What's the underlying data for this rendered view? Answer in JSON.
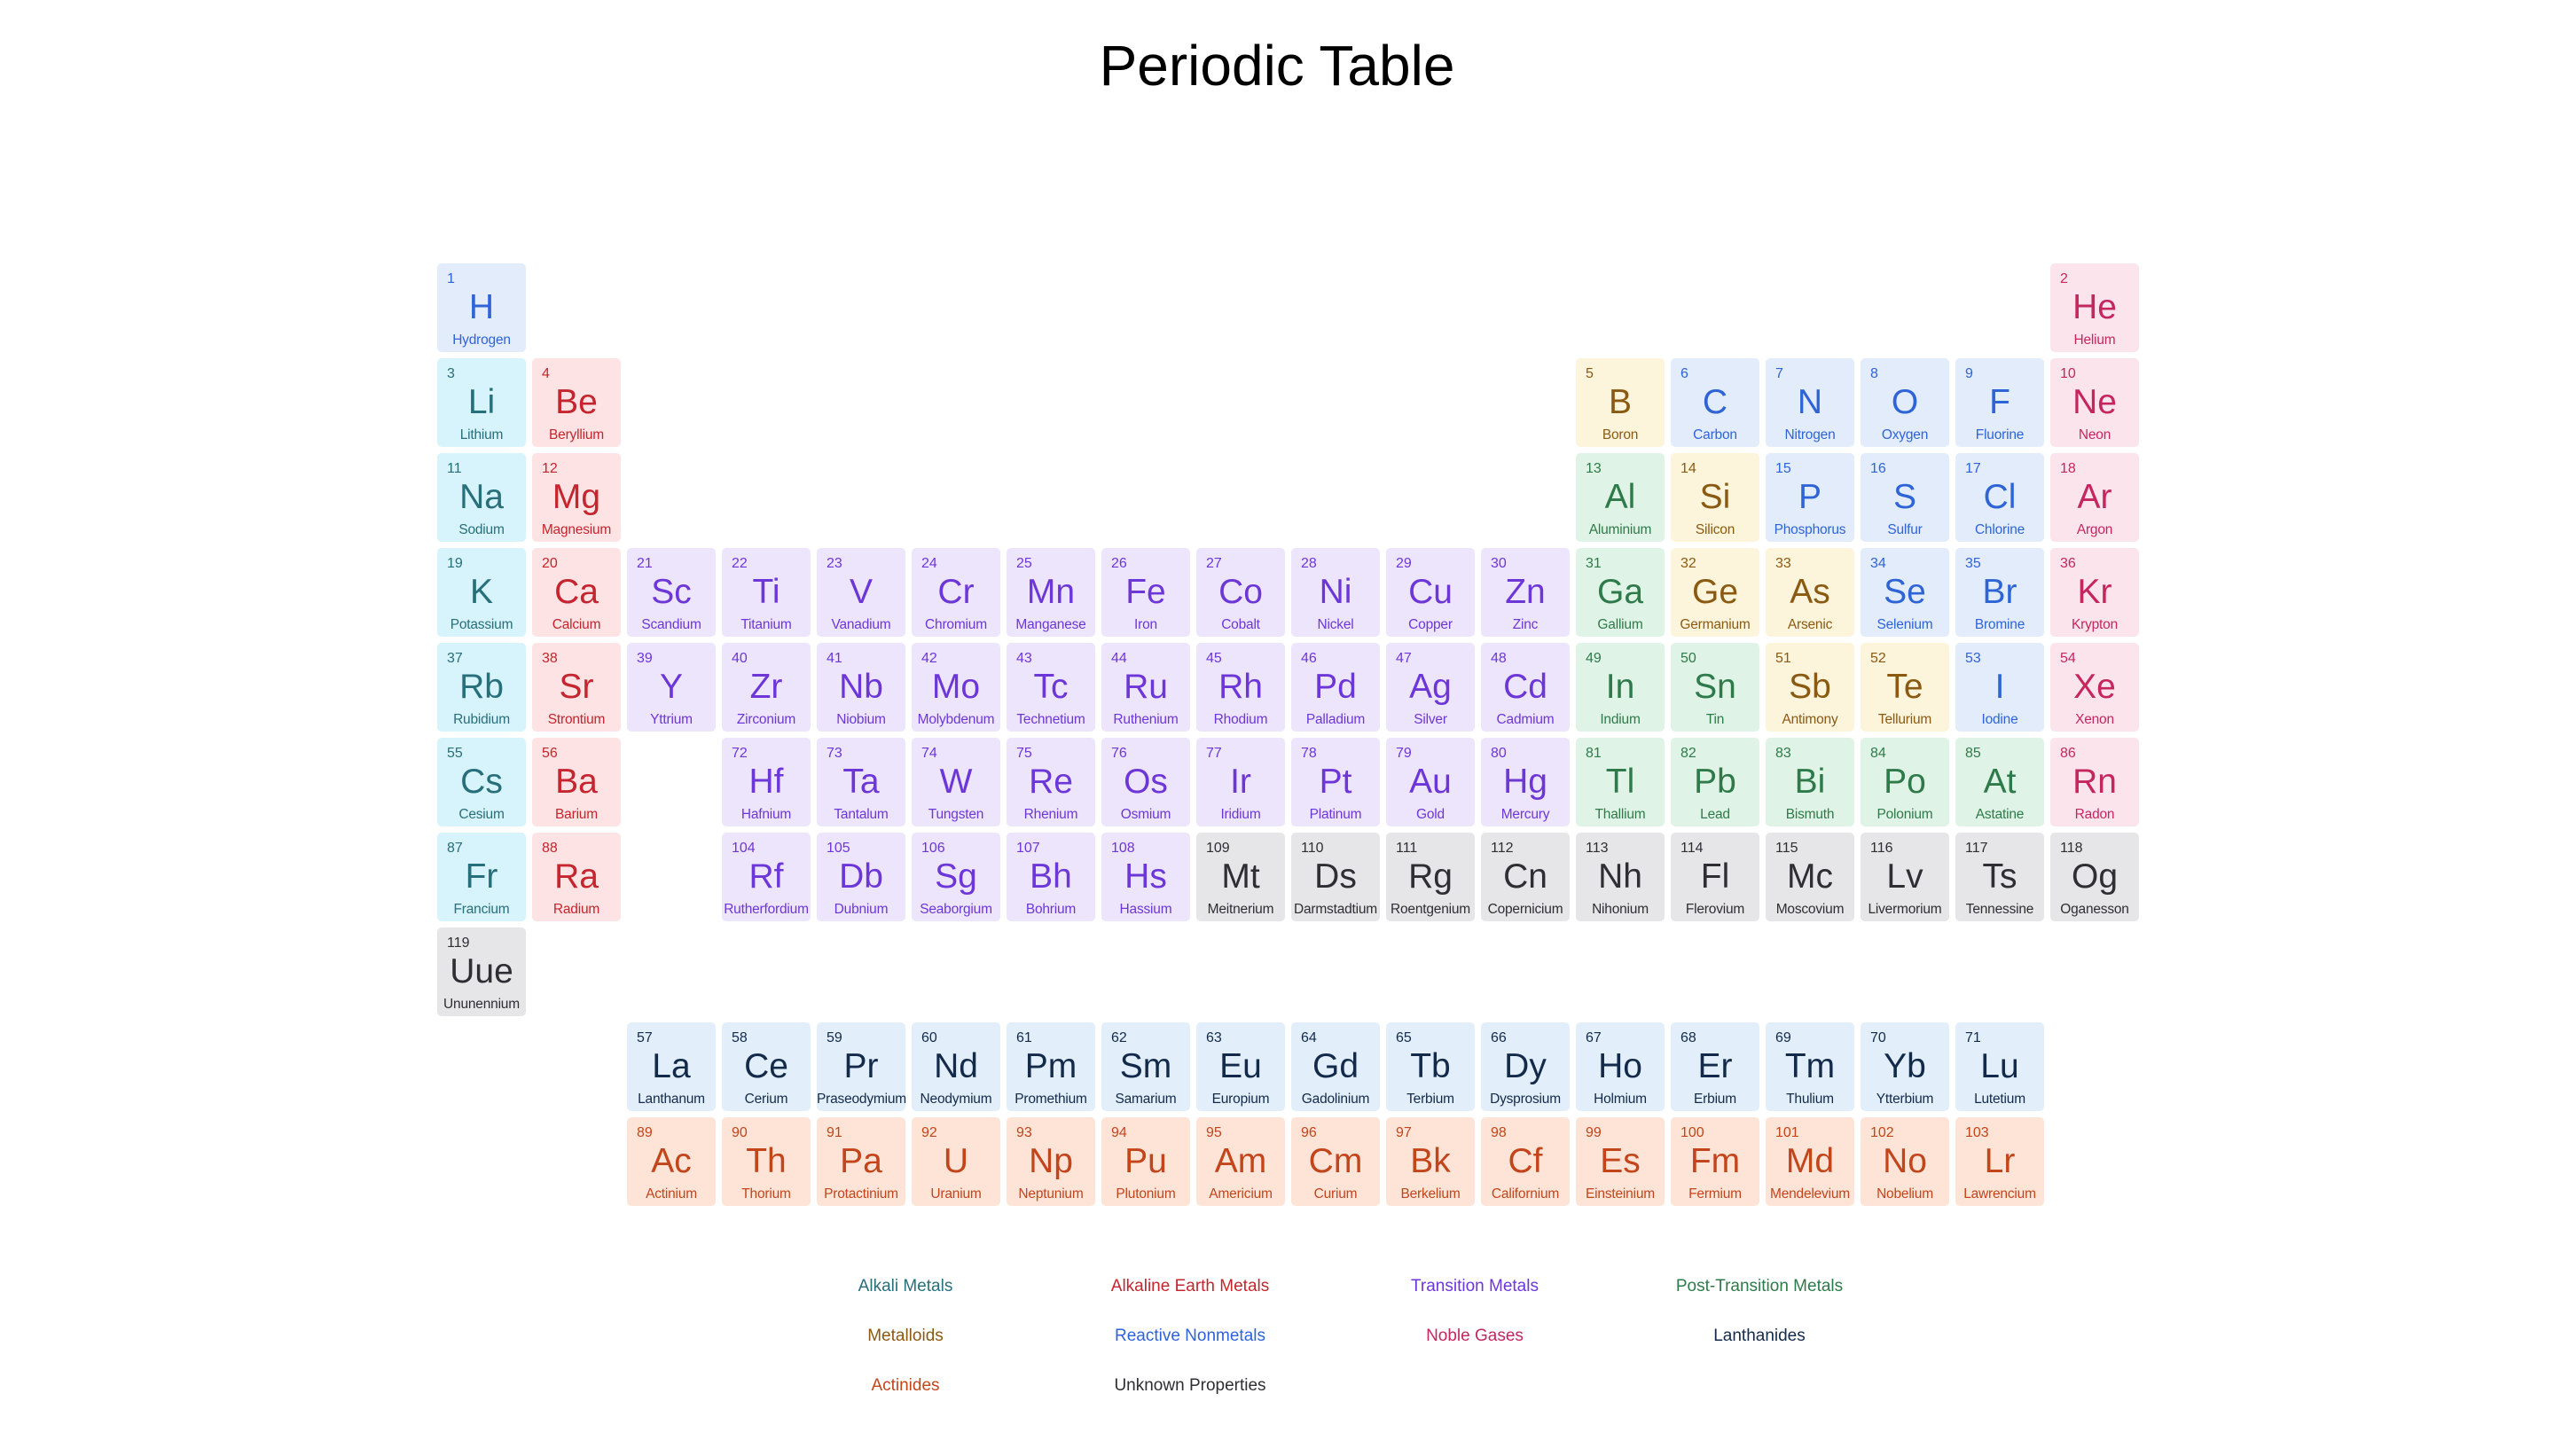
{
  "title": "Periodic Table",
  "categories": {
    "alkali": {
      "label": "Alkali Metals",
      "bg": "#d7f3fb",
      "fg": "#276f7a"
    },
    "alkaline": {
      "label": "Alkaline Earth Metals",
      "bg": "#fde3e3",
      "fg": "#c4252e"
    },
    "transition": {
      "label": "Transition Metals",
      "bg": "#ede5fb",
      "fg": "#6d37d8"
    },
    "post": {
      "label": "Post-Transition Metals",
      "bg": "#dff4e6",
      "fg": "#2f7a4a"
    },
    "metalloid": {
      "label": "Metalloids",
      "bg": "#fdf4dc",
      "fg": "#8b5a12"
    },
    "nonmetal": {
      "label": "Reactive Nonmetals",
      "bg": "#e2ecfb",
      "fg": "#2f64d6"
    },
    "noble": {
      "label": "Noble Gases",
      "bg": "#fce4ec",
      "fg": "#c4275e"
    },
    "lanthanide": {
      "label": "Lanthanides",
      "bg": "#e2effb",
      "fg": "#132a4a"
    },
    "actinide": {
      "label": "Actinides",
      "bg": "#fde4d6",
      "fg": "#c2451c"
    },
    "unknown": {
      "label": "Unknown Properties",
      "bg": "#e6e6e8",
      "fg": "#2e2e33"
    }
  },
  "legend": [
    [
      "alkali",
      "alkaline",
      "transition",
      "post"
    ],
    [
      "metalloid",
      "nonmetal",
      "noble",
      "lanthanide"
    ],
    [
      "actinide",
      "unknown"
    ]
  ],
  "elements": [
    {
      "n": 1,
      "s": "H",
      "name": "Hydrogen",
      "c": "nonmetal",
      "row": 1,
      "col": 1
    },
    {
      "n": 2,
      "s": "He",
      "name": "Helium",
      "c": "noble",
      "row": 1,
      "col": 18
    },
    {
      "n": 3,
      "s": "Li",
      "name": "Lithium",
      "c": "alkali",
      "row": 2,
      "col": 1
    },
    {
      "n": 4,
      "s": "Be",
      "name": "Beryllium",
      "c": "alkaline",
      "row": 2,
      "col": 2
    },
    {
      "n": 5,
      "s": "B",
      "name": "Boron",
      "c": "metalloid",
      "row": 2,
      "col": 13
    },
    {
      "n": 6,
      "s": "C",
      "name": "Carbon",
      "c": "nonmetal",
      "row": 2,
      "col": 14
    },
    {
      "n": 7,
      "s": "N",
      "name": "Nitrogen",
      "c": "nonmetal",
      "row": 2,
      "col": 15
    },
    {
      "n": 8,
      "s": "O",
      "name": "Oxygen",
      "c": "nonmetal",
      "row": 2,
      "col": 16
    },
    {
      "n": 9,
      "s": "F",
      "name": "Fluorine",
      "c": "nonmetal",
      "row": 2,
      "col": 17
    },
    {
      "n": 10,
      "s": "Ne",
      "name": "Neon",
      "c": "noble",
      "row": 2,
      "col": 18
    },
    {
      "n": 11,
      "s": "Na",
      "name": "Sodium",
      "c": "alkali",
      "row": 3,
      "col": 1
    },
    {
      "n": 12,
      "s": "Mg",
      "name": "Magnesium",
      "c": "alkaline",
      "row": 3,
      "col": 2
    },
    {
      "n": 13,
      "s": "Al",
      "name": "Aluminium",
      "c": "post",
      "row": 3,
      "col": 13
    },
    {
      "n": 14,
      "s": "Si",
      "name": "Silicon",
      "c": "metalloid",
      "row": 3,
      "col": 14
    },
    {
      "n": 15,
      "s": "P",
      "name": "Phosphorus",
      "c": "nonmetal",
      "row": 3,
      "col": 15
    },
    {
      "n": 16,
      "s": "S",
      "name": "Sulfur",
      "c": "nonmetal",
      "row": 3,
      "col": 16
    },
    {
      "n": 17,
      "s": "Cl",
      "name": "Chlorine",
      "c": "nonmetal",
      "row": 3,
      "col": 17
    },
    {
      "n": 18,
      "s": "Ar",
      "name": "Argon",
      "c": "noble",
      "row": 3,
      "col": 18
    },
    {
      "n": 19,
      "s": "K",
      "name": "Potassium",
      "c": "alkali",
      "row": 4,
      "col": 1
    },
    {
      "n": 20,
      "s": "Ca",
      "name": "Calcium",
      "c": "alkaline",
      "row": 4,
      "col": 2
    },
    {
      "n": 21,
      "s": "Sc",
      "name": "Scandium",
      "c": "transition",
      "row": 4,
      "col": 3
    },
    {
      "n": 22,
      "s": "Ti",
      "name": "Titanium",
      "c": "transition",
      "row": 4,
      "col": 4
    },
    {
      "n": 23,
      "s": "V",
      "name": "Vanadium",
      "c": "transition",
      "row": 4,
      "col": 5
    },
    {
      "n": 24,
      "s": "Cr",
      "name": "Chromium",
      "c": "transition",
      "row": 4,
      "col": 6
    },
    {
      "n": 25,
      "s": "Mn",
      "name": "Manganese",
      "c": "transition",
      "row": 4,
      "col": 7
    },
    {
      "n": 26,
      "s": "Fe",
      "name": "Iron",
      "c": "transition",
      "row": 4,
      "col": 8
    },
    {
      "n": 27,
      "s": "Co",
      "name": "Cobalt",
      "c": "transition",
      "row": 4,
      "col": 9
    },
    {
      "n": 28,
      "s": "Ni",
      "name": "Nickel",
      "c": "transition",
      "row": 4,
      "col": 10
    },
    {
      "n": 29,
      "s": "Cu",
      "name": "Copper",
      "c": "transition",
      "row": 4,
      "col": 11
    },
    {
      "n": 30,
      "s": "Zn",
      "name": "Zinc",
      "c": "transition",
      "row": 4,
      "col": 12
    },
    {
      "n": 31,
      "s": "Ga",
      "name": "Gallium",
      "c": "post",
      "row": 4,
      "col": 13
    },
    {
      "n": 32,
      "s": "Ge",
      "name": "Germanium",
      "c": "metalloid",
      "row": 4,
      "col": 14
    },
    {
      "n": 33,
      "s": "As",
      "name": "Arsenic",
      "c": "metalloid",
      "row": 4,
      "col": 15
    },
    {
      "n": 34,
      "s": "Se",
      "name": "Selenium",
      "c": "nonmetal",
      "row": 4,
      "col": 16
    },
    {
      "n": 35,
      "s": "Br",
      "name": "Bromine",
      "c": "nonmetal",
      "row": 4,
      "col": 17
    },
    {
      "n": 36,
      "s": "Kr",
      "name": "Krypton",
      "c": "noble",
      "row": 4,
      "col": 18
    },
    {
      "n": 37,
      "s": "Rb",
      "name": "Rubidium",
      "c": "alkali",
      "row": 5,
      "col": 1
    },
    {
      "n": 38,
      "s": "Sr",
      "name": "Strontium",
      "c": "alkaline",
      "row": 5,
      "col": 2
    },
    {
      "n": 39,
      "s": "Y",
      "name": "Yttrium",
      "c": "transition",
      "row": 5,
      "col": 3
    },
    {
      "n": 40,
      "s": "Zr",
      "name": "Zirconium",
      "c": "transition",
      "row": 5,
      "col": 4
    },
    {
      "n": 41,
      "s": "Nb",
      "name": "Niobium",
      "c": "transition",
      "row": 5,
      "col": 5
    },
    {
      "n": 42,
      "s": "Mo",
      "name": "Molybdenum",
      "c": "transition",
      "row": 5,
      "col": 6
    },
    {
      "n": 43,
      "s": "Tc",
      "name": "Technetium",
      "c": "transition",
      "row": 5,
      "col": 7
    },
    {
      "n": 44,
      "s": "Ru",
      "name": "Ruthenium",
      "c": "transition",
      "row": 5,
      "col": 8
    },
    {
      "n": 45,
      "s": "Rh",
      "name": "Rhodium",
      "c": "transition",
      "row": 5,
      "col": 9
    },
    {
      "n": 46,
      "s": "Pd",
      "name": "Palladium",
      "c": "transition",
      "row": 5,
      "col": 10
    },
    {
      "n": 47,
      "s": "Ag",
      "name": "Silver",
      "c": "transition",
      "row": 5,
      "col": 11
    },
    {
      "n": 48,
      "s": "Cd",
      "name": "Cadmium",
      "c": "transition",
      "row": 5,
      "col": 12
    },
    {
      "n": 49,
      "s": "In",
      "name": "Indium",
      "c": "post",
      "row": 5,
      "col": 13
    },
    {
      "n": 50,
      "s": "Sn",
      "name": "Tin",
      "c": "post",
      "row": 5,
      "col": 14
    },
    {
      "n": 51,
      "s": "Sb",
      "name": "Antimony",
      "c": "metalloid",
      "row": 5,
      "col": 15
    },
    {
      "n": 52,
      "s": "Te",
      "name": "Tellurium",
      "c": "metalloid",
      "row": 5,
      "col": 16
    },
    {
      "n": 53,
      "s": "I",
      "name": "Iodine",
      "c": "nonmetal",
      "row": 5,
      "col": 17
    },
    {
      "n": 54,
      "s": "Xe",
      "name": "Xenon",
      "c": "noble",
      "row": 5,
      "col": 18
    },
    {
      "n": 55,
      "s": "Cs",
      "name": "Cesium",
      "c": "alkali",
      "row": 6,
      "col": 1
    },
    {
      "n": 56,
      "s": "Ba",
      "name": "Barium",
      "c": "alkaline",
      "row": 6,
      "col": 2
    },
    {
      "n": 72,
      "s": "Hf",
      "name": "Hafnium",
      "c": "transition",
      "row": 6,
      "col": 4
    },
    {
      "n": 73,
      "s": "Ta",
      "name": "Tantalum",
      "c": "transition",
      "row": 6,
      "col": 5
    },
    {
      "n": 74,
      "s": "W",
      "name": "Tungsten",
      "c": "transition",
      "row": 6,
      "col": 6
    },
    {
      "n": 75,
      "s": "Re",
      "name": "Rhenium",
      "c": "transition",
      "row": 6,
      "col": 7
    },
    {
      "n": 76,
      "s": "Os",
      "name": "Osmium",
      "c": "transition",
      "row": 6,
      "col": 8
    },
    {
      "n": 77,
      "s": "Ir",
      "name": "Iridium",
      "c": "transition",
      "row": 6,
      "col": 9
    },
    {
      "n": 78,
      "s": "Pt",
      "name": "Platinum",
      "c": "transition",
      "row": 6,
      "col": 10
    },
    {
      "n": 79,
      "s": "Au",
      "name": "Gold",
      "c": "transition",
      "row": 6,
      "col": 11
    },
    {
      "n": 80,
      "s": "Hg",
      "name": "Mercury",
      "c": "transition",
      "row": 6,
      "col": 12
    },
    {
      "n": 81,
      "s": "Tl",
      "name": "Thallium",
      "c": "post",
      "row": 6,
      "col": 13
    },
    {
      "n": 82,
      "s": "Pb",
      "name": "Lead",
      "c": "post",
      "row": 6,
      "col": 14
    },
    {
      "n": 83,
      "s": "Bi",
      "name": "Bismuth",
      "c": "post",
      "row": 6,
      "col": 15
    },
    {
      "n": 84,
      "s": "Po",
      "name": "Polonium",
      "c": "post",
      "row": 6,
      "col": 16
    },
    {
      "n": 85,
      "s": "At",
      "name": "Astatine",
      "c": "post",
      "row": 6,
      "col": 17
    },
    {
      "n": 86,
      "s": "Rn",
      "name": "Radon",
      "c": "noble",
      "row": 6,
      "col": 18
    },
    {
      "n": 87,
      "s": "Fr",
      "name": "Francium",
      "c": "alkali",
      "row": 7,
      "col": 1
    },
    {
      "n": 88,
      "s": "Ra",
      "name": "Radium",
      "c": "alkaline",
      "row": 7,
      "col": 2
    },
    {
      "n": 104,
      "s": "Rf",
      "name": "Rutherfordium",
      "c": "transition",
      "row": 7,
      "col": 4
    },
    {
      "n": 105,
      "s": "Db",
      "name": "Dubnium",
      "c": "transition",
      "row": 7,
      "col": 5
    },
    {
      "n": 106,
      "s": "Sg",
      "name": "Seaborgium",
      "c": "transition",
      "row": 7,
      "col": 6
    },
    {
      "n": 107,
      "s": "Bh",
      "name": "Bohrium",
      "c": "transition",
      "row": 7,
      "col": 7
    },
    {
      "n": 108,
      "s": "Hs",
      "name": "Hassium",
      "c": "transition",
      "row": 7,
      "col": 8
    },
    {
      "n": 109,
      "s": "Mt",
      "name": "Meitnerium",
      "c": "unknown",
      "row": 7,
      "col": 9
    },
    {
      "n": 110,
      "s": "Ds",
      "name": "Darmstadtium",
      "c": "unknown",
      "row": 7,
      "col": 10
    },
    {
      "n": 111,
      "s": "Rg",
      "name": "Roentgenium",
      "c": "unknown",
      "row": 7,
      "col": 11
    },
    {
      "n": 112,
      "s": "Cn",
      "name": "Copernicium",
      "c": "unknown",
      "row": 7,
      "col": 12
    },
    {
      "n": 113,
      "s": "Nh",
      "name": "Nihonium",
      "c": "unknown",
      "row": 7,
      "col": 13
    },
    {
      "n": 114,
      "s": "Fl",
      "name": "Flerovium",
      "c": "unknown",
      "row": 7,
      "col": 14
    },
    {
      "n": 115,
      "s": "Mc",
      "name": "Moscovium",
      "c": "unknown",
      "row": 7,
      "col": 15
    },
    {
      "n": 116,
      "s": "Lv",
      "name": "Livermorium",
      "c": "unknown",
      "row": 7,
      "col": 16
    },
    {
      "n": 117,
      "s": "Ts",
      "name": "Tennessine",
      "c": "unknown",
      "row": 7,
      "col": 17
    },
    {
      "n": 118,
      "s": "Og",
      "name": "Oganesson",
      "c": "unknown",
      "row": 7,
      "col": 18
    },
    {
      "n": 119,
      "s": "Uue",
      "name": "Ununennium",
      "c": "unknown",
      "row": 8,
      "col": 1
    },
    {
      "n": 57,
      "s": "La",
      "name": "Lanthanum",
      "c": "lanthanide",
      "row": 9,
      "col": 3
    },
    {
      "n": 58,
      "s": "Ce",
      "name": "Cerium",
      "c": "lanthanide",
      "row": 9,
      "col": 4
    },
    {
      "n": 59,
      "s": "Pr",
      "name": "Praseodymium",
      "c": "lanthanide",
      "row": 9,
      "col": 5
    },
    {
      "n": 60,
      "s": "Nd",
      "name": "Neodymium",
      "c": "lanthanide",
      "row": 9,
      "col": 6
    },
    {
      "n": 61,
      "s": "Pm",
      "name": "Promethium",
      "c": "lanthanide",
      "row": 9,
      "col": 7
    },
    {
      "n": 62,
      "s": "Sm",
      "name": "Samarium",
      "c": "lanthanide",
      "row": 9,
      "col": 8
    },
    {
      "n": 63,
      "s": "Eu",
      "name": "Europium",
      "c": "lanthanide",
      "row": 9,
      "col": 9
    },
    {
      "n": 64,
      "s": "Gd",
      "name": "Gadolinium",
      "c": "lanthanide",
      "row": 9,
      "col": 10
    },
    {
      "n": 65,
      "s": "Tb",
      "name": "Terbium",
      "c": "lanthanide",
      "row": 9,
      "col": 11
    },
    {
      "n": 66,
      "s": "Dy",
      "name": "Dysprosium",
      "c": "lanthanide",
      "row": 9,
      "col": 12
    },
    {
      "n": 67,
      "s": "Ho",
      "name": "Holmium",
      "c": "lanthanide",
      "row": 9,
      "col": 13
    },
    {
      "n": 68,
      "s": "Er",
      "name": "Erbium",
      "c": "lanthanide",
      "row": 9,
      "col": 14
    },
    {
      "n": 69,
      "s": "Tm",
      "name": "Thulium",
      "c": "lanthanide",
      "row": 9,
      "col": 15
    },
    {
      "n": 70,
      "s": "Yb",
      "name": "Ytterbium",
      "c": "lanthanide",
      "row": 9,
      "col": 16
    },
    {
      "n": 71,
      "s": "Lu",
      "name": "Lutetium",
      "c": "lanthanide",
      "row": 9,
      "col": 17
    },
    {
      "n": 89,
      "s": "Ac",
      "name": "Actinium",
      "c": "actinide",
      "row": 10,
      "col": 3
    },
    {
      "n": 90,
      "s": "Th",
      "name": "Thorium",
      "c": "actinide",
      "row": 10,
      "col": 4
    },
    {
      "n": 91,
      "s": "Pa",
      "name": "Protactinium",
      "c": "actinide",
      "row": 10,
      "col": 5
    },
    {
      "n": 92,
      "s": "U",
      "name": "Uranium",
      "c": "actinide",
      "row": 10,
      "col": 6
    },
    {
      "n": 93,
      "s": "Np",
      "name": "Neptunium",
      "c": "actinide",
      "row": 10,
      "col": 7
    },
    {
      "n": 94,
      "s": "Pu",
      "name": "Plutonium",
      "c": "actinide",
      "row": 10,
      "col": 8
    },
    {
      "n": 95,
      "s": "Am",
      "name": "Americium",
      "c": "actinide",
      "row": 10,
      "col": 9
    },
    {
      "n": 96,
      "s": "Cm",
      "name": "Curium",
      "c": "actinide",
      "row": 10,
      "col": 10
    },
    {
      "n": 97,
      "s": "Bk",
      "name": "Berkelium",
      "c": "actinide",
      "row": 10,
      "col": 11
    },
    {
      "n": 98,
      "s": "Cf",
      "name": "Californium",
      "c": "actinide",
      "row": 10,
      "col": 12
    },
    {
      "n": 99,
      "s": "Es",
      "name": "Einsteinium",
      "c": "actinide",
      "row": 10,
      "col": 13
    },
    {
      "n": 100,
      "s": "Fm",
      "name": "Fermium",
      "c": "actinide",
      "row": 10,
      "col": 14
    },
    {
      "n": 101,
      "s": "Md",
      "name": "Mendelevium",
      "c": "actinide",
      "row": 10,
      "col": 15
    },
    {
      "n": 102,
      "s": "No",
      "name": "Nobelium",
      "c": "actinide",
      "row": 10,
      "col": 16
    },
    {
      "n": 103,
      "s": "Lr",
      "name": "Lawrencium",
      "c": "actinide",
      "row": 10,
      "col": 17
    }
  ]
}
